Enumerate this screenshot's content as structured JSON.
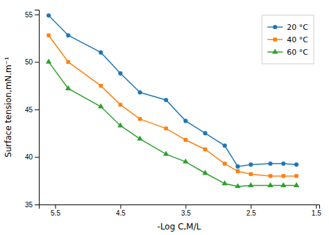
{
  "chart_data": {
    "type": "line",
    "xlabel": "-Log C,M/L",
    "ylabel": "Surface tension,mN.m⁻¹",
    "x": [
      5.6,
      5.3,
      4.8,
      4.5,
      4.2,
      3.8,
      3.5,
      3.2,
      2.9,
      2.7,
      2.5,
      2.2,
      2.0,
      1.8
    ],
    "series": [
      {
        "name": "20 °C",
        "marker": "circle",
        "values": [
          54.9,
          52.8,
          51.0,
          48.8,
          46.8,
          46.0,
          43.8,
          42.5,
          41.2,
          39.0,
          39.2,
          39.3,
          39.3,
          39.2
        ]
      },
      {
        "name": "40 °C",
        "marker": "square",
        "values": [
          52.8,
          50.0,
          47.5,
          45.5,
          44.0,
          43.0,
          41.8,
          40.8,
          39.3,
          38.5,
          38.2,
          38.0,
          38.0,
          38.0
        ]
      },
      {
        "name": "60 °C",
        "marker": "triangle",
        "values": [
          50.0,
          47.2,
          45.3,
          43.3,
          41.9,
          40.3,
          39.5,
          38.3,
          37.2,
          36.9,
          37.0,
          37.0,
          37.0,
          37.0
        ]
      }
    ],
    "xlim": [
      5.75,
      1.45
    ],
    "ylim": [
      35,
      55.5
    ],
    "xticks": [
      5.5,
      4.5,
      3.5,
      2.5,
      1.5
    ],
    "yticks": [
      35,
      40,
      45,
      50,
      55
    ],
    "legend": "upper right",
    "grid": false
  }
}
